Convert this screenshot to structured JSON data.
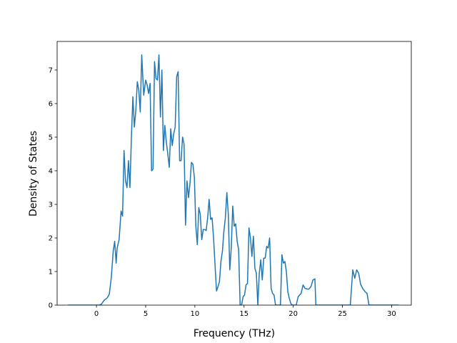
{
  "chart_data": {
    "type": "line",
    "title": "",
    "xlabel": "Frequency (THz)",
    "ylabel": "Density of States",
    "xlim": [
      -4.0,
      32.0
    ],
    "ylim": [
      0,
      7.85
    ],
    "xticks": [
      0,
      5,
      10,
      15,
      20,
      25,
      30
    ],
    "yticks": [
      0,
      1,
      2,
      3,
      4,
      5,
      6,
      7
    ],
    "grid": false,
    "legend": "none",
    "series": [
      {
        "color": "#1f77b4",
        "points": [
          [
            -2.9,
            0
          ],
          [
            -1.0,
            0
          ],
          [
            0.3,
            0
          ],
          [
            0.5,
            0.03
          ],
          [
            0.8,
            0.15
          ],
          [
            1.1,
            0.22
          ],
          [
            1.3,
            0.32
          ],
          [
            1.5,
            0.8
          ],
          [
            1.7,
            1.6
          ],
          [
            1.85,
            1.9
          ],
          [
            2.0,
            1.25
          ],
          [
            2.1,
            1.7
          ],
          [
            2.3,
            1.95
          ],
          [
            2.5,
            2.8
          ],
          [
            2.65,
            2.65
          ],
          [
            2.8,
            4.6
          ],
          [
            2.95,
            3.7
          ],
          [
            3.1,
            3.5
          ],
          [
            3.25,
            4.3
          ],
          [
            3.4,
            3.5
          ],
          [
            3.55,
            5.0
          ],
          [
            3.7,
            6.2
          ],
          [
            3.85,
            5.3
          ],
          [
            4.0,
            5.8
          ],
          [
            4.15,
            6.65
          ],
          [
            4.3,
            6.4
          ],
          [
            4.45,
            5.75
          ],
          [
            4.6,
            7.45
          ],
          [
            4.8,
            6.25
          ],
          [
            5.0,
            6.7
          ],
          [
            5.15,
            6.55
          ],
          [
            5.3,
            6.3
          ],
          [
            5.45,
            6.6
          ],
          [
            5.6,
            4.0
          ],
          [
            5.75,
            4.05
          ],
          [
            5.9,
            7.25
          ],
          [
            6.05,
            6.75
          ],
          [
            6.2,
            6.7
          ],
          [
            6.35,
            7.45
          ],
          [
            6.5,
            5.6
          ],
          [
            6.65,
            7.0
          ],
          [
            6.8,
            4.6
          ],
          [
            6.95,
            5.35
          ],
          [
            7.1,
            4.85
          ],
          [
            7.25,
            4.5
          ],
          [
            7.4,
            4.1
          ],
          [
            7.55,
            5.25
          ],
          [
            7.7,
            4.75
          ],
          [
            7.85,
            5.1
          ],
          [
            8.0,
            5.3
          ],
          [
            8.15,
            6.8
          ],
          [
            8.3,
            6.95
          ],
          [
            8.45,
            4.3
          ],
          [
            8.6,
            4.3
          ],
          [
            8.75,
            5.0
          ],
          [
            8.9,
            4.8
          ],
          [
            9.05,
            2.38
          ],
          [
            9.2,
            3.7
          ],
          [
            9.35,
            3.2
          ],
          [
            9.5,
            3.6
          ],
          [
            9.65,
            4.25
          ],
          [
            9.8,
            4.2
          ],
          [
            9.95,
            3.8
          ],
          [
            10.1,
            2.35
          ],
          [
            10.25,
            1.8
          ],
          [
            10.4,
            2.9
          ],
          [
            10.55,
            2.7
          ],
          [
            10.7,
            1.95
          ],
          [
            10.85,
            2.25
          ],
          [
            11.0,
            2.25
          ],
          [
            11.15,
            2.22
          ],
          [
            11.3,
            2.6
          ],
          [
            11.45,
            3.15
          ],
          [
            11.6,
            2.55
          ],
          [
            11.75,
            2.6
          ],
          [
            11.9,
            2.0
          ],
          [
            12.05,
            1.2
          ],
          [
            12.2,
            0.42
          ],
          [
            12.35,
            0.55
          ],
          [
            12.5,
            0.7
          ],
          [
            12.65,
            1.3
          ],
          [
            12.8,
            1.6
          ],
          [
            12.95,
            2.2
          ],
          [
            13.1,
            2.6
          ],
          [
            13.25,
            3.35
          ],
          [
            13.4,
            2.7
          ],
          [
            13.55,
            1.05
          ],
          [
            13.7,
            1.7
          ],
          [
            13.85,
            2.95
          ],
          [
            14.0,
            2.35
          ],
          [
            14.15,
            2.42
          ],
          [
            14.3,
            1.9
          ],
          [
            14.45,
            1.65
          ],
          [
            14.6,
            0
          ],
          [
            14.75,
            0
          ],
          [
            14.9,
            0.25
          ],
          [
            15.05,
            0.3
          ],
          [
            15.2,
            0.6
          ],
          [
            15.35,
            0.65
          ],
          [
            15.5,
            2.3
          ],
          [
            15.65,
            2.0
          ],
          [
            15.8,
            1.45
          ],
          [
            15.95,
            2.05
          ],
          [
            16.1,
            1.1
          ],
          [
            16.25,
            0.95
          ],
          [
            16.4,
            0
          ],
          [
            16.55,
            0.95
          ],
          [
            16.7,
            1.35
          ],
          [
            16.85,
            0.75
          ],
          [
            17.0,
            1.4
          ],
          [
            17.15,
            1.4
          ],
          [
            17.3,
            1.75
          ],
          [
            17.45,
            1.7
          ],
          [
            17.6,
            2.0
          ],
          [
            17.75,
            0.5
          ],
          [
            17.9,
            0.35
          ],
          [
            18.05,
            0.3
          ],
          [
            18.2,
            0
          ],
          [
            18.7,
            0
          ],
          [
            18.85,
            1.5
          ],
          [
            19.0,
            1.25
          ],
          [
            19.15,
            1.3
          ],
          [
            19.3,
            1.0
          ],
          [
            19.45,
            0.4
          ],
          [
            19.6,
            0.2
          ],
          [
            19.75,
            0.05
          ],
          [
            19.9,
            0
          ],
          [
            20.3,
            0
          ],
          [
            20.5,
            0.25
          ],
          [
            20.8,
            0.35
          ],
          [
            21.0,
            0.6
          ],
          [
            21.2,
            0.5
          ],
          [
            21.4,
            0.48
          ],
          [
            21.6,
            0.48
          ],
          [
            21.8,
            0.55
          ],
          [
            22.0,
            0.75
          ],
          [
            22.2,
            0.78
          ],
          [
            22.3,
            0
          ],
          [
            22.5,
            0
          ],
          [
            25.8,
            0
          ],
          [
            26.05,
            1.05
          ],
          [
            26.25,
            0.8
          ],
          [
            26.45,
            1.05
          ],
          [
            26.65,
            0.95
          ],
          [
            26.85,
            0.62
          ],
          [
            27.05,
            0.5
          ],
          [
            27.3,
            0.4
          ],
          [
            27.5,
            0.35
          ],
          [
            27.7,
            0
          ],
          [
            30.7,
            0
          ]
        ]
      }
    ]
  }
}
